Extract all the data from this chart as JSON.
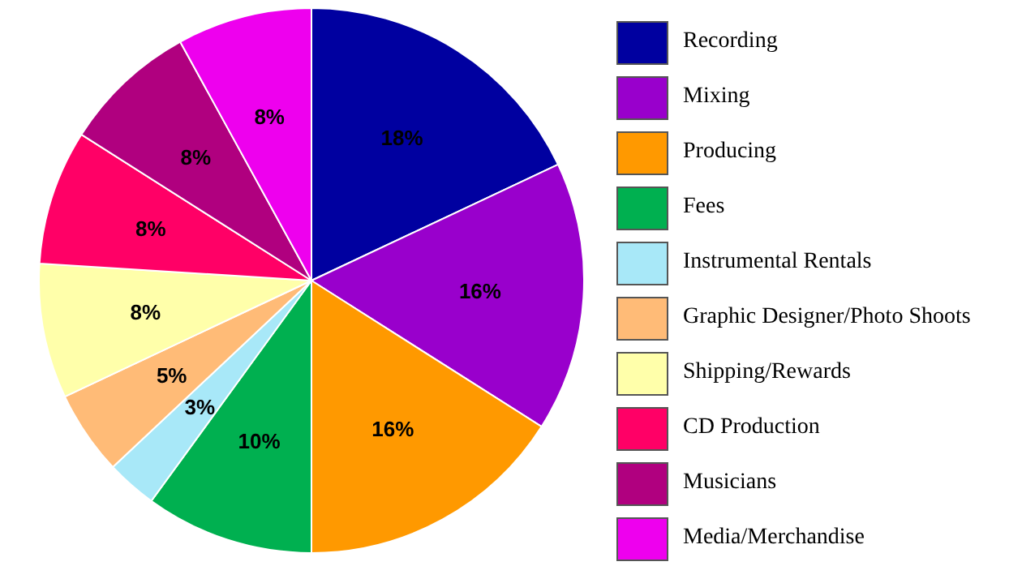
{
  "chart_data": {
    "type": "pie",
    "categories": [
      "Recording",
      "Mixing",
      "Producing",
      "Fees",
      "Instrumental Rentals",
      "Graphic Designer/Photo Shoots",
      "Shipping/Rewards",
      "CD Production",
      "Musicians",
      "Media/Merchandise"
    ],
    "values": [
      18,
      16,
      16,
      10,
      3,
      5,
      8,
      8,
      8,
      8
    ],
    "colors": [
      "#0000a0",
      "#9900cc",
      "#ff9900",
      "#00b050",
      "#a8e8f8",
      "#ffbb77",
      "#ffffaa",
      "#ff0066",
      "#b0007f",
      "#ee00ee"
    ],
    "value_labels": [
      "18%",
      "16%",
      "16%",
      "10%",
      "3%",
      "5%",
      "8%",
      "8%",
      "8%",
      "8%"
    ],
    "legend": "right"
  }
}
